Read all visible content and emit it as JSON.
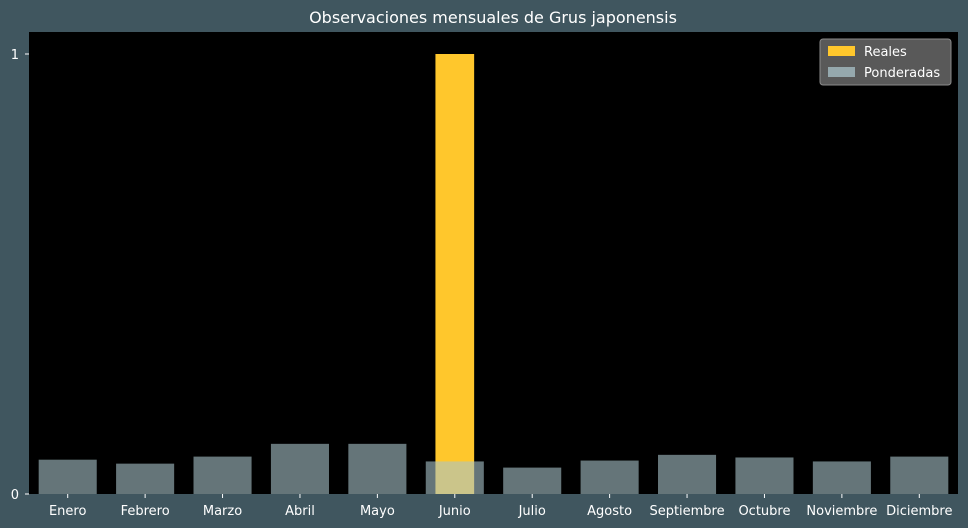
{
  "chart_data": {
    "type": "bar",
    "title": "Observaciones mensuales de Grus japonensis",
    "xlabel": "",
    "ylabel": "",
    "categories": [
      "Enero",
      "Febrero",
      "Marzo",
      "Abril",
      "Mayo",
      "Junio",
      "Julio",
      "Agosto",
      "Septiembre",
      "Octubre",
      "Noviembre",
      "Diciembre"
    ],
    "ylim": [
      0,
      1.05
    ],
    "yticks": [
      0,
      1
    ],
    "grid": false,
    "legend_position": "top-right",
    "series": [
      {
        "name": "Reales",
        "color": "#ffc72c",
        "values": [
          0,
          0,
          0,
          0,
          0,
          1,
          0,
          0,
          0,
          0,
          0,
          0
        ]
      },
      {
        "name": "Ponderadas",
        "color": "#a9c3c9",
        "values": [
          0.078,
          0.069,
          0.085,
          0.114,
          0.114,
          0.074,
          0.06,
          0.076,
          0.089,
          0.083,
          0.074,
          0.085
        ]
      }
    ]
  }
}
